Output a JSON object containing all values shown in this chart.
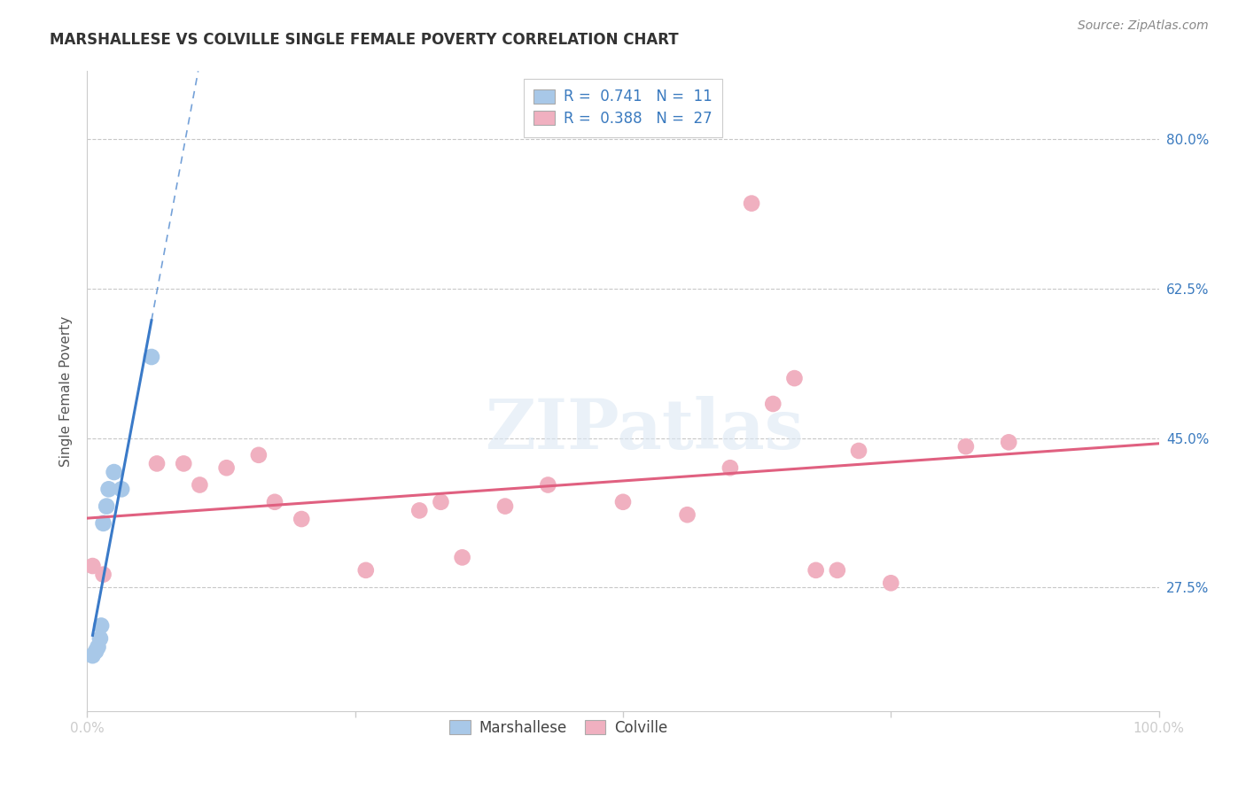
{
  "title": "MARSHALLESE VS COLVILLE SINGLE FEMALE POVERTY CORRELATION CHART",
  "source": "Source: ZipAtlas.com",
  "ylabel": "Single Female Poverty",
  "xlim": [
    0.0,
    1.0
  ],
  "ylim": [
    0.13,
    0.88
  ],
  "ytick_labels": [
    "27.5%",
    "45.0%",
    "62.5%",
    "80.0%"
  ],
  "ytick_positions": [
    0.275,
    0.45,
    0.625,
    0.8
  ],
  "bg_color": "#ffffff",
  "grid_color": "#c8c8c8",
  "marshallese_color": "#a8c8e8",
  "colville_color": "#f0b0c0",
  "marshallese_line_color": "#3a7ac8",
  "colville_line_color": "#e06080",
  "marshallese_r": "0.741",
  "marshallese_n": "11",
  "colville_r": "0.388",
  "colville_n": "27",
  "legend_color": "#3a7abf",
  "marshallese_x": [
    0.005,
    0.008,
    0.01,
    0.012,
    0.013,
    0.015,
    0.018,
    0.02,
    0.025,
    0.032,
    0.06
  ],
  "marshallese_y": [
    0.195,
    0.2,
    0.205,
    0.215,
    0.23,
    0.35,
    0.37,
    0.39,
    0.41,
    0.39,
    0.545
  ],
  "colville_x": [
    0.005,
    0.015,
    0.065,
    0.09,
    0.105,
    0.13,
    0.16,
    0.175,
    0.2,
    0.26,
    0.31,
    0.33,
    0.35,
    0.39,
    0.43,
    0.5,
    0.56,
    0.6,
    0.62,
    0.64,
    0.66,
    0.68,
    0.7,
    0.72,
    0.75,
    0.82,
    0.86
  ],
  "colville_y": [
    0.3,
    0.29,
    0.42,
    0.42,
    0.395,
    0.415,
    0.43,
    0.375,
    0.355,
    0.295,
    0.365,
    0.375,
    0.31,
    0.37,
    0.395,
    0.375,
    0.36,
    0.415,
    0.725,
    0.49,
    0.52,
    0.295,
    0.295,
    0.435,
    0.28,
    0.44,
    0.445
  ]
}
